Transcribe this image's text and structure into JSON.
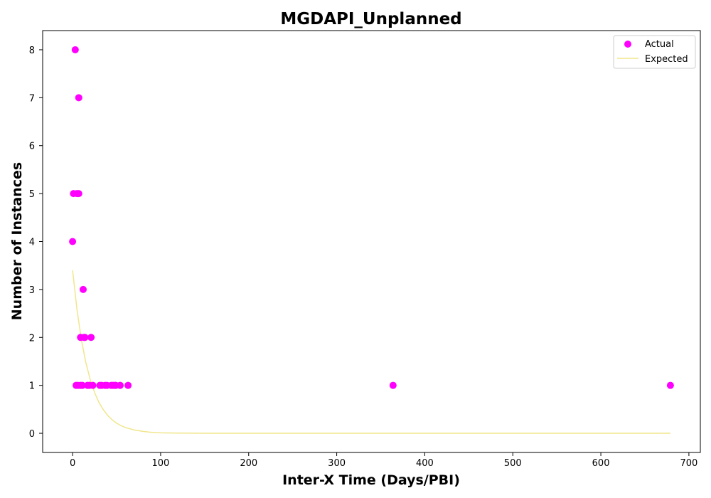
{
  "chart_data": {
    "type": "scatter",
    "title": "MGDAPI_Unplanned",
    "xlabel": "Inter-X Time (Days/PBI)",
    "ylabel": "Number of Instances",
    "xlim": [
      -34,
      713
    ],
    "ylim": [
      -0.4,
      8.4
    ],
    "xticks": [
      0,
      100,
      200,
      300,
      400,
      500,
      600,
      700
    ],
    "yticks": [
      0,
      1,
      2,
      3,
      4,
      5,
      6,
      7,
      8
    ],
    "grid": false,
    "legend_position": "top-right",
    "series": [
      {
        "name": "Actual",
        "kind": "scatter",
        "color": "#ff00ff",
        "points": [
          [
            0,
            4
          ],
          [
            1,
            5
          ],
          [
            3,
            8
          ],
          [
            4,
            1
          ],
          [
            5,
            5
          ],
          [
            6,
            1
          ],
          [
            7,
            5
          ],
          [
            7,
            7
          ],
          [
            9,
            1
          ],
          [
            9,
            2
          ],
          [
            11,
            1
          ],
          [
            12,
            3
          ],
          [
            13,
            2
          ],
          [
            14,
            2
          ],
          [
            17,
            1
          ],
          [
            19,
            1
          ],
          [
            21,
            2
          ],
          [
            23,
            1
          ],
          [
            31,
            1
          ],
          [
            33,
            1
          ],
          [
            37,
            1
          ],
          [
            39,
            1
          ],
          [
            44,
            1
          ],
          [
            46,
            1
          ],
          [
            48,
            1
          ],
          [
            49,
            1
          ],
          [
            54,
            1
          ],
          [
            63,
            1
          ],
          [
            364,
            1
          ],
          [
            679,
            1
          ]
        ]
      },
      {
        "name": "Expected",
        "kind": "line",
        "color": "#f0e68c",
        "points": [
          [
            0,
            3.4
          ],
          [
            5,
            2.58
          ],
          [
            10,
            1.95
          ],
          [
            15,
            1.48
          ],
          [
            20,
            1.12
          ],
          [
            25,
            0.85
          ],
          [
            30,
            0.64
          ],
          [
            35,
            0.49
          ],
          [
            40,
            0.37
          ],
          [
            45,
            0.28
          ],
          [
            50,
            0.21
          ],
          [
            55,
            0.16
          ],
          [
            60,
            0.12
          ],
          [
            70,
            0.07
          ],
          [
            80,
            0.04
          ],
          [
            90,
            0.02
          ],
          [
            100,
            0.01
          ],
          [
            120,
            0.004
          ],
          [
            150,
            0.001
          ],
          [
            200,
            0
          ],
          [
            300,
            0
          ],
          [
            400,
            0
          ],
          [
            500,
            0
          ],
          [
            600,
            0
          ],
          [
            679,
            0
          ]
        ]
      }
    ]
  }
}
